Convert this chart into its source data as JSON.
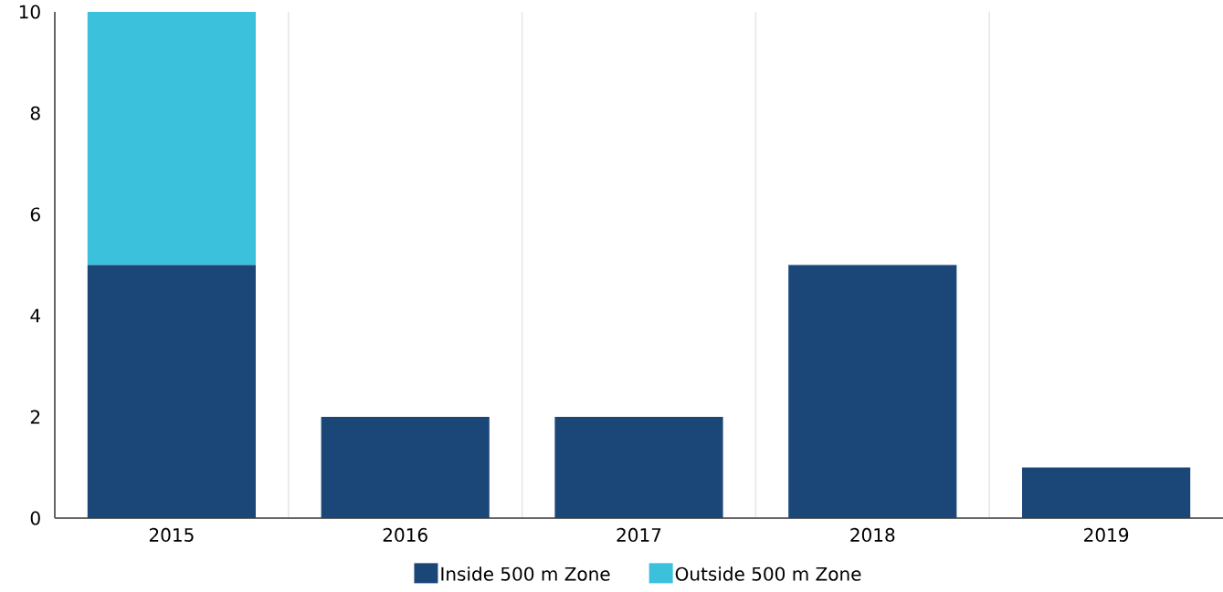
{
  "chart_data": {
    "type": "bar",
    "stacked": true,
    "categories": [
      "2015",
      "2016",
      "2017",
      "2018",
      "2019"
    ],
    "series": [
      {
        "name": "Inside 500 m Zone",
        "color": "#1a4678",
        "values": [
          5,
          2,
          2,
          5,
          1
        ]
      },
      {
        "name": "Outside 500 m Zone",
        "color": "#3bc1db",
        "values": [
          5,
          null,
          null,
          null,
          null
        ]
      }
    ],
    "ylim": [
      0,
      10
    ],
    "yticks": [
      0,
      2,
      4,
      6,
      8,
      10
    ],
    "grid": "x",
    "legend": "bottom"
  }
}
